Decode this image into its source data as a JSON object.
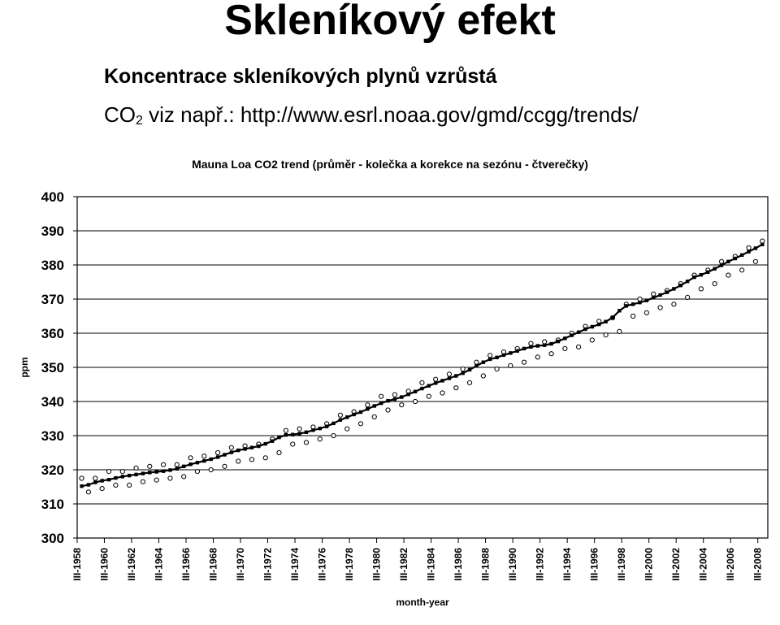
{
  "header": {
    "title": "Skleníkový efekt",
    "subtitle": "Koncentrace skleníkových plynů vzrůstá",
    "co2_prefix": "CO",
    "co2_sub": "2",
    "co2_text": " viz např.: http://www.esrl.noaa.gov/gmd/ccgg/trends/"
  },
  "chart_data": {
    "type": "scatter",
    "title": "Mauna Loa CO2 trend (průměr - kolečka a korekce na sezónu - čtverečky)",
    "xlabel": "month-year",
    "ylabel": "ppm",
    "ylim": [
      300,
      400
    ],
    "yticks": [
      300,
      310,
      320,
      330,
      340,
      350,
      360,
      370,
      380,
      390,
      400
    ],
    "xlim": [
      1958.17,
      2008.9
    ],
    "xticks": [
      "III-1958",
      "III-1960",
      "III-1962",
      "III-1964",
      "III-1966",
      "III-1968",
      "III-1970",
      "III-1972",
      "III-1974",
      "III-1976",
      "III-1978",
      "III-1980",
      "III-1982",
      "III-1984",
      "III-1986",
      "III-1988",
      "III-1990",
      "III-1992",
      "III-1994",
      "III-1996",
      "III-1998",
      "III-2000",
      "III-2002",
      "III-2004",
      "III-2006",
      "III-2008"
    ],
    "grid": "horizontal",
    "legend": "none",
    "series": [
      {
        "marker": "circle-open",
        "x": [
          1958.5,
          1959,
          1959.5,
          1960,
          1960.5,
          1961,
          1961.5,
          1962,
          1962.5,
          1963,
          1963.5,
          1964,
          1964.5,
          1965,
          1965.5,
          1966,
          1966.5,
          1967,
          1967.5,
          1968,
          1968.5,
          1969,
          1969.5,
          1970,
          1970.5,
          1971,
          1971.5,
          1972,
          1972.5,
          1973,
          1973.5,
          1974,
          1974.5,
          1975,
          1975.5,
          1976,
          1976.5,
          1977,
          1977.5,
          1978,
          1978.5,
          1979,
          1979.5,
          1980,
          1980.5,
          1981,
          1981.5,
          1982,
          1982.5,
          1983,
          1983.5,
          1984,
          1984.5,
          1985,
          1985.5,
          1986,
          1986.5,
          1987,
          1987.5,
          1988,
          1988.5,
          1989,
          1989.5,
          1990,
          1990.5,
          1991,
          1991.5,
          1992,
          1992.5,
          1993,
          1993.5,
          1994,
          1994.5,
          1995,
          1995.5,
          1996,
          1996.5,
          1997,
          1997.5,
          1998,
          1998.5,
          1999,
          1999.5,
          2000,
          2000.5,
          2001,
          2001.5,
          2002,
          2002.5,
          2003,
          2003.5,
          2004,
          2004.5,
          2005,
          2005.5,
          2006,
          2006.5,
          2007,
          2007.5,
          2008,
          2008.5
        ],
        "y": [
          317.5,
          313.5,
          317.5,
          314.5,
          319.5,
          315.5,
          319.5,
          315.5,
          320.5,
          316.5,
          321.0,
          317.0,
          321.5,
          317.5,
          321.5,
          318.0,
          323.5,
          319.5,
          324.0,
          320.0,
          325.0,
          321.0,
          326.5,
          322.5,
          327.0,
          323.0,
          327.5,
          323.5,
          329.0,
          325.0,
          331.5,
          327.5,
          332.0,
          328.0,
          332.5,
          329.0,
          333.5,
          330.0,
          336.0,
          332.0,
          337.0,
          333.5,
          339.0,
          335.5,
          341.5,
          337.5,
          342.0,
          339.0,
          343.0,
          340.0,
          345.5,
          341.5,
          346.5,
          342.5,
          348.0,
          344.0,
          349.5,
          345.5,
          351.5,
          347.5,
          353.5,
          349.5,
          354.5,
          350.5,
          355.5,
          351.5,
          357.0,
          353.0,
          357.5,
          354.0,
          358.0,
          355.5,
          360.0,
          356.0,
          362.0,
          358.0,
          363.5,
          359.5,
          364.5,
          360.5,
          368.5,
          365.0,
          370.0,
          366.0,
          371.5,
          367.5,
          372.5,
          368.5,
          374.5,
          370.5,
          377.0,
          373.0,
          378.5,
          374.5,
          381.0,
          377.0,
          382.5,
          378.5,
          385.0,
          381.0,
          387.0
        ]
      },
      {
        "marker": "square-filled",
        "x": [
          1958.5,
          1959,
          1959.5,
          1960,
          1960.5,
          1961,
          1961.5,
          1962,
          1962.5,
          1963,
          1963.5,
          1964,
          1964.5,
          1965,
          1965.5,
          1966,
          1966.5,
          1967,
          1967.5,
          1968,
          1968.5,
          1969,
          1969.5,
          1970,
          1970.5,
          1971,
          1971.5,
          1972,
          1972.5,
          1973,
          1973.5,
          1974,
          1974.5,
          1975,
          1975.5,
          1976,
          1976.5,
          1977,
          1977.5,
          1978,
          1978.5,
          1979,
          1979.5,
          1980,
          1980.5,
          1981,
          1981.5,
          1982,
          1982.5,
          1983,
          1983.5,
          1984,
          1984.5,
          1985,
          1985.5,
          1986,
          1986.5,
          1987,
          1987.5,
          1988,
          1988.5,
          1989,
          1989.5,
          1990,
          1990.5,
          1991,
          1991.5,
          1992,
          1992.5,
          1993,
          1993.5,
          1994,
          1994.5,
          1995,
          1995.5,
          1996,
          1996.5,
          1997,
          1997.5,
          1998,
          1998.5,
          1999,
          1999.5,
          2000,
          2000.5,
          2001,
          2001.5,
          2002,
          2002.5,
          2003,
          2003.5,
          2004,
          2004.5,
          2005,
          2005.5,
          2006,
          2006.5,
          2007,
          2007.5,
          2008,
          2008.5
        ],
        "y": [
          315.2,
          315.6,
          316.3,
          316.8,
          317.1,
          317.6,
          318.0,
          318.3,
          318.6,
          318.9,
          319.2,
          319.4,
          319.6,
          319.9,
          320.3,
          321.0,
          321.6,
          322.1,
          322.6,
          323.1,
          323.7,
          324.4,
          325.1,
          325.7,
          326.1,
          326.5,
          326.9,
          327.6,
          328.4,
          329.5,
          330.2,
          330.3,
          330.6,
          331.0,
          331.6,
          332.1,
          332.7,
          333.6,
          334.6,
          335.4,
          336.2,
          336.9,
          337.8,
          338.7,
          339.5,
          340.2,
          340.7,
          341.3,
          342.1,
          342.9,
          343.8,
          344.6,
          345.4,
          346.1,
          346.8,
          347.5,
          348.3,
          349.3,
          350.4,
          351.5,
          352.4,
          352.9,
          353.6,
          354.2,
          354.8,
          355.5,
          356.0,
          356.3,
          356.5,
          356.9,
          357.6,
          358.5,
          359.4,
          360.3,
          361.2,
          361.9,
          362.6,
          363.4,
          364.6,
          366.6,
          368.0,
          368.5,
          369.0,
          369.6,
          370.4,
          371.2,
          372.0,
          373.0,
          374.0,
          375.2,
          376.4,
          377.1,
          377.9,
          378.9,
          379.9,
          381.0,
          381.9,
          382.9,
          383.9,
          384.9,
          386.0
        ]
      }
    ]
  }
}
